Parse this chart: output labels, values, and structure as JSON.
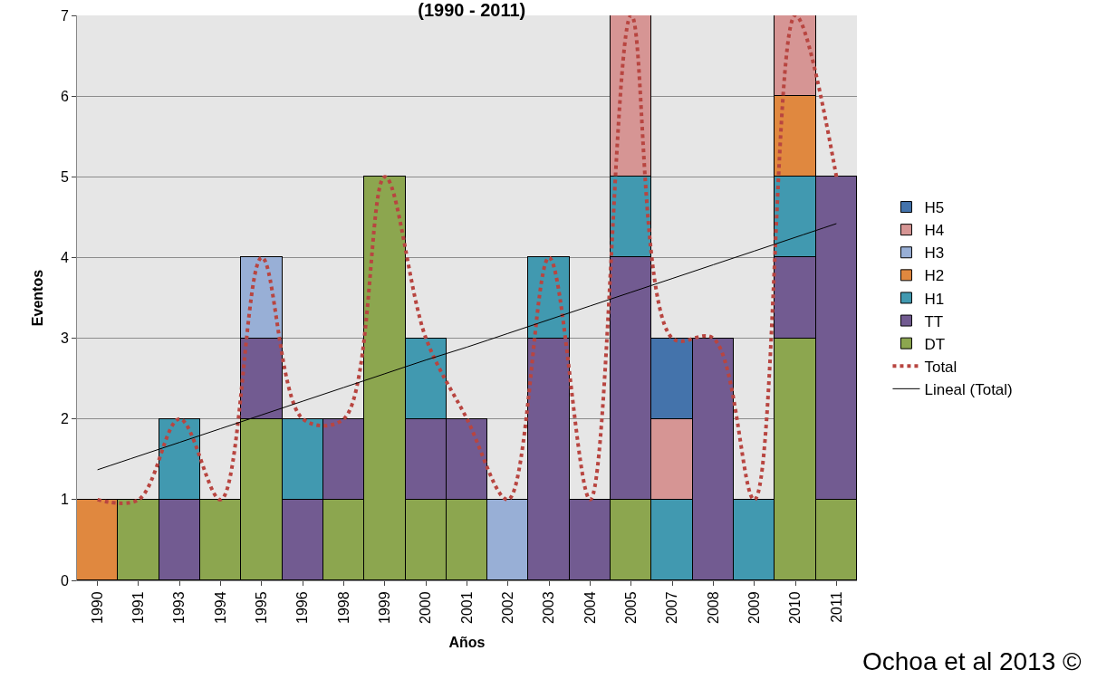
{
  "chart_data": {
    "type": "bar",
    "stacked": true,
    "title": "(1990 - 2011)",
    "xlabel": "Años",
    "ylabel": "Eventos",
    "categories": [
      "1990",
      "1991",
      "1993",
      "1994",
      "1995",
      "1996",
      "1998",
      "1999",
      "2000",
      "2001",
      "2002",
      "2003",
      "2004",
      "2005",
      "2007",
      "2008",
      "2009",
      "2010",
      "2011"
    ],
    "series": [
      {
        "name": "DT",
        "color": "#8ca64f",
        "values": [
          null,
          1,
          null,
          1,
          2,
          null,
          1,
          5,
          1,
          1,
          null,
          null,
          null,
          1,
          null,
          null,
          null,
          3,
          1
        ]
      },
      {
        "name": "TT",
        "color": "#725b91",
        "values": [
          null,
          null,
          1,
          null,
          1,
          1,
          1,
          null,
          1,
          1,
          null,
          3,
          1,
          3,
          null,
          3,
          null,
          1,
          4
        ]
      },
      {
        "name": "H1",
        "color": "#4199b0",
        "values": [
          null,
          null,
          1,
          null,
          null,
          1,
          null,
          null,
          1,
          null,
          null,
          1,
          null,
          1,
          1,
          null,
          1,
          1,
          null
        ]
      },
      {
        "name": "H2",
        "color": "#e0883f",
        "values": [
          1,
          null,
          null,
          null,
          null,
          null,
          null,
          null,
          null,
          null,
          null,
          null,
          null,
          null,
          null,
          null,
          null,
          1,
          null
        ]
      },
      {
        "name": "H3",
        "color": "#98afd6",
        "values": [
          null,
          null,
          null,
          null,
          1,
          null,
          null,
          null,
          null,
          null,
          1,
          null,
          null,
          null,
          null,
          null,
          null,
          null,
          null
        ]
      },
      {
        "name": "H4",
        "color": "#d69594",
        "values": [
          null,
          null,
          null,
          null,
          null,
          null,
          null,
          null,
          null,
          null,
          null,
          null,
          null,
          2,
          1,
          null,
          null,
          1,
          null
        ]
      },
      {
        "name": "H5",
        "color": "#4473ab",
        "values": [
          null,
          null,
          null,
          null,
          null,
          null,
          null,
          null,
          null,
          null,
          null,
          null,
          null,
          null,
          1,
          null,
          null,
          null,
          null
        ]
      },
      {
        "name": "Total",
        "type": "line",
        "line_style": "dotted",
        "color": "#b84540",
        "values": [
          1,
          1,
          2,
          1,
          4,
          2,
          2,
          5,
          3,
          2,
          1,
          4,
          1,
          7,
          3,
          3,
          1,
          7,
          5
        ]
      },
      {
        "name": "Lineal (Total)",
        "type": "line",
        "line_style": "solid",
        "color": "#000000",
        "values": [
          1.37,
          1.54,
          1.71,
          1.88,
          2.05,
          2.22,
          2.39,
          2.56,
          2.73,
          2.89,
          3.06,
          3.23,
          3.4,
          3.57,
          3.74,
          3.91,
          4.08,
          4.25,
          4.42
        ]
      }
    ],
    "ylim": [
      0,
      7
    ],
    "yticks": [
      0,
      1,
      2,
      3,
      4,
      5,
      6,
      7
    ],
    "grid": "y",
    "legend": "right",
    "annotations": [
      "Ochoa et al 2013 ©"
    ]
  }
}
